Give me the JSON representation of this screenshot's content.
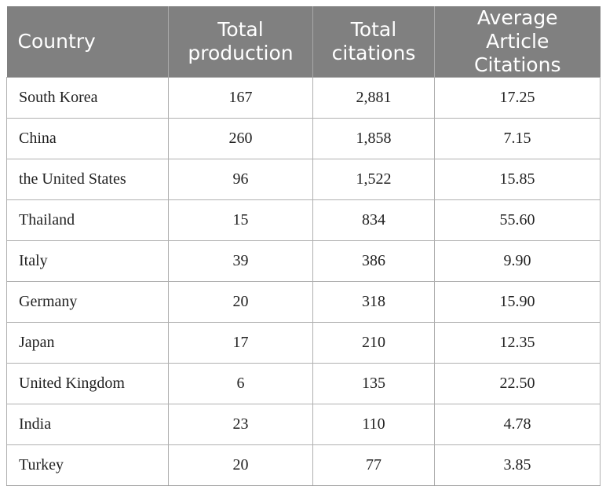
{
  "table": {
    "headers": [
      "Country",
      "Total production",
      "Total citations",
      "Average Article Citations"
    ],
    "header_lines": [
      [
        "Country"
      ],
      [
        "Total",
        "production"
      ],
      [
        "Total",
        "citations"
      ],
      [
        "Average Article",
        "Citations"
      ]
    ],
    "rows": [
      [
        "South Korea",
        "167",
        "2,881",
        "17.25"
      ],
      [
        "China",
        "260",
        "1,858",
        "7.15"
      ],
      [
        "the United States",
        "96",
        "1,522",
        "15.85"
      ],
      [
        "Thailand",
        "15",
        "834",
        "55.60"
      ],
      [
        "Italy",
        "39",
        "386",
        "9.90"
      ],
      [
        "Germany",
        "20",
        "318",
        "15.90"
      ],
      [
        "Japan",
        "17",
        "210",
        "12.35"
      ],
      [
        "United Kingdom",
        "6",
        "135",
        "22.50"
      ],
      [
        "India",
        "23",
        "110",
        "4.78"
      ],
      [
        "Turkey",
        "20",
        "77",
        "3.85"
      ]
    ]
  },
  "colors": {
    "header_bg": "#808080",
    "header_text": "#ffffff",
    "grid": "#b0b0b0",
    "body_text": "#222222"
  }
}
